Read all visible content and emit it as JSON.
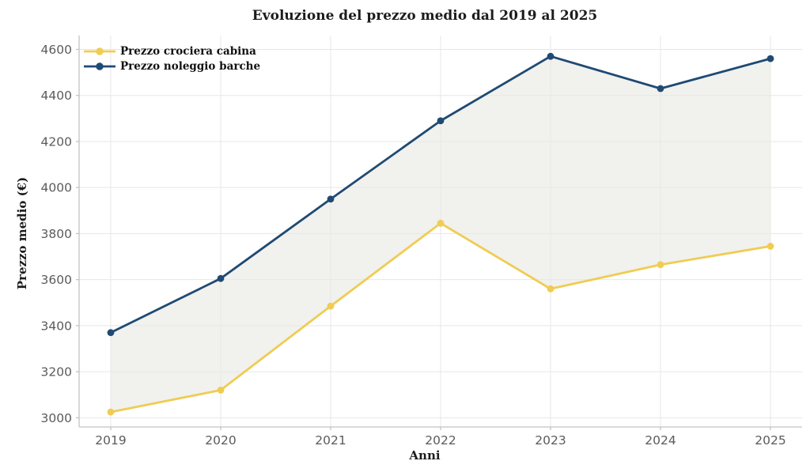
{
  "chart_data": {
    "type": "line",
    "title": "Evoluzione del prezzo medio dal 2019 al 2025",
    "xlabel": "Anni",
    "ylabel": "Prezzo medio (€)",
    "x": [
      "2019",
      "2020",
      "2021",
      "2022",
      "2023",
      "2024",
      "2025"
    ],
    "series": [
      {
        "name": "Prezzo crociera cabina",
        "color": "#f0cc52",
        "marker": "circle",
        "values": [
          3025,
          3120,
          3485,
          3845,
          3560,
          3665,
          3745
        ]
      },
      {
        "name": "Prezzo noleggio barche",
        "color": "#1f4a73",
        "marker": "circle",
        "values": [
          3370,
          3605,
          3950,
          4290,
          4570,
          4430,
          4560
        ]
      }
    ],
    "yticks": [
      3000,
      3200,
      3400,
      3600,
      3800,
      4000,
      4200,
      4400,
      4600
    ],
    "ylim": [
      2960,
      4660
    ],
    "grid": true,
    "legend_position": "top-left",
    "fill_between_series": true,
    "fill_color": "#f1f1ee",
    "grid_color": "#e7e7e7",
    "spine_color": "#c3c3c3",
    "tick_label_color": "#5b5b5b"
  }
}
